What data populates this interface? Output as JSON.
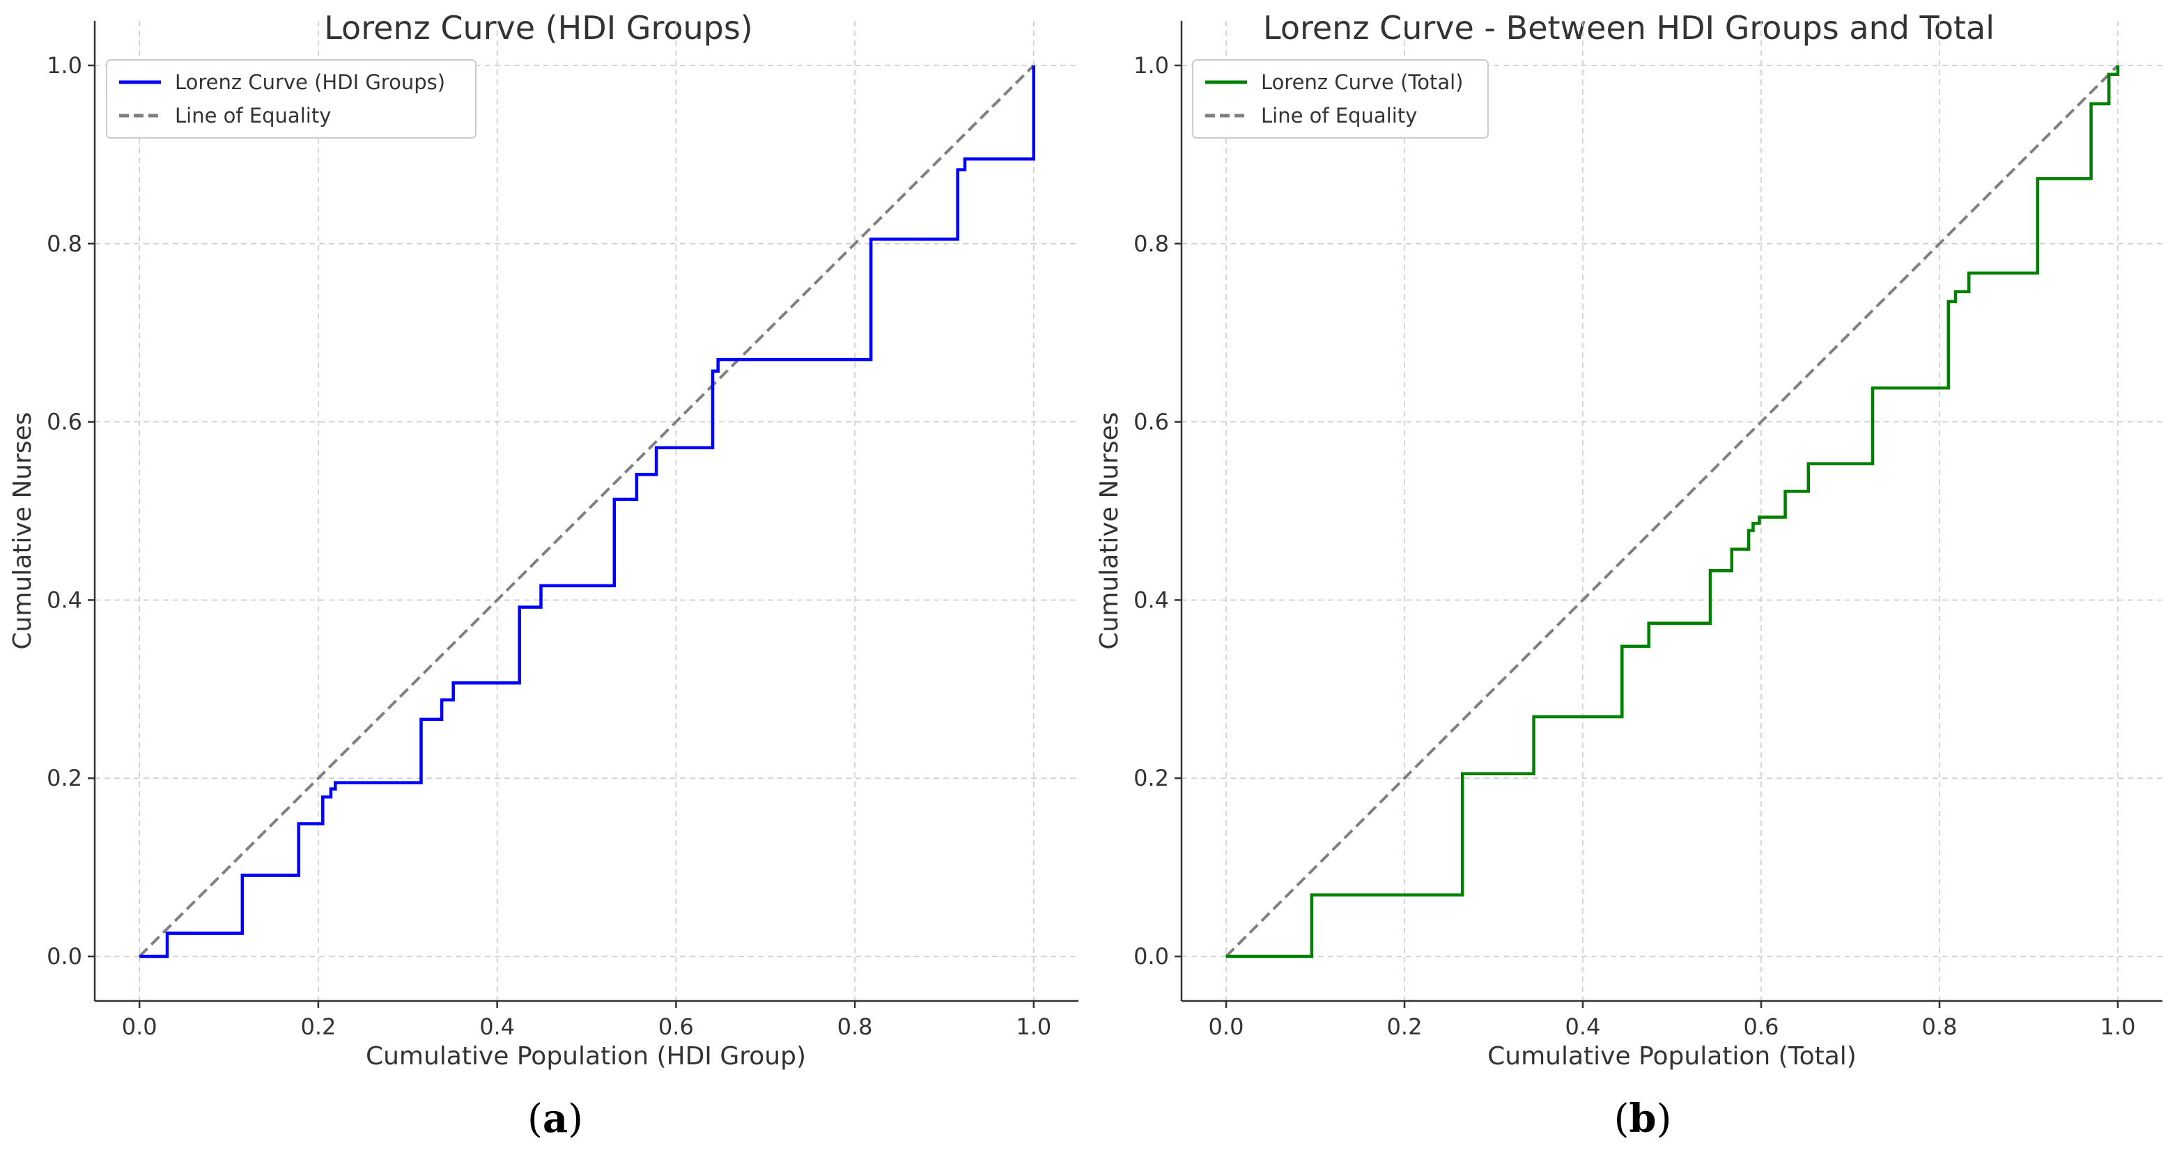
{
  "chart_data": [
    {
      "type": "line",
      "panel": "a",
      "title": "Lorenz Curve (HDI Groups)",
      "xlabel": "Cumulative Population (HDI Group)",
      "ylabel": "Cumulative Nurses",
      "xlim": [
        -0.05,
        1.05
      ],
      "ylim": [
        -0.05,
        1.05
      ],
      "xticks": [
        "0.0",
        "0.2",
        "0.4",
        "0.6",
        "0.8",
        "1.0"
      ],
      "yticks": [
        "0.0",
        "0.2",
        "0.4",
        "0.6",
        "0.8",
        "1.0"
      ],
      "grid": true,
      "legend_position": "top-left",
      "caption": "a",
      "series": [
        {
          "name": "Lorenz Curve (HDI Groups)",
          "color": "#0000ff",
          "style": "step",
          "points": [
            [
              0,
              0
            ],
            [
              0.031,
              0
            ],
            [
              0.031,
              0.026
            ],
            [
              0.115,
              0.026
            ],
            [
              0.115,
              0.091
            ],
            [
              0.178,
              0.091
            ],
            [
              0.178,
              0.149
            ],
            [
              0.205,
              0.149
            ],
            [
              0.205,
              0.179
            ],
            [
              0.214,
              0.179
            ],
            [
              0.214,
              0.188
            ],
            [
              0.219,
              0.188
            ],
            [
              0.219,
              0.195
            ],
            [
              0.315,
              0.195
            ],
            [
              0.315,
              0.266
            ],
            [
              0.338,
              0.266
            ],
            [
              0.338,
              0.288
            ],
            [
              0.351,
              0.288
            ],
            [
              0.351,
              0.307
            ],
            [
              0.425,
              0.307
            ],
            [
              0.425,
              0.392
            ],
            [
              0.449,
              0.392
            ],
            [
              0.449,
              0.416
            ],
            [
              0.531,
              0.416
            ],
            [
              0.531,
              0.513
            ],
            [
              0.556,
              0.513
            ],
            [
              0.556,
              0.541
            ],
            [
              0.578,
              0.541
            ],
            [
              0.578,
              0.571
            ],
            [
              0.641,
              0.571
            ],
            [
              0.641,
              0.657
            ],
            [
              0.647,
              0.657
            ],
            [
              0.647,
              0.67
            ],
            [
              0.818,
              0.67
            ],
            [
              0.818,
              0.805
            ],
            [
              0.915,
              0.805
            ],
            [
              0.915,
              0.883
            ],
            [
              0.923,
              0.883
            ],
            [
              0.923,
              0.895
            ],
            [
              1.0,
              0.895
            ],
            [
              1.0,
              1.0
            ]
          ]
        },
        {
          "name": "Line of Equality",
          "color": "#808080",
          "style": "dashed",
          "points": [
            [
              0,
              0
            ],
            [
              1,
              1
            ]
          ]
        }
      ]
    },
    {
      "type": "line",
      "panel": "b",
      "title": "Lorenz Curve - Between HDI Groups and Total",
      "xlabel": "Cumulative Population (Total)",
      "ylabel": "Cumulative Nurses",
      "xlim": [
        -0.05,
        1.05
      ],
      "ylim": [
        -0.05,
        1.05
      ],
      "xticks": [
        "0.0",
        "0.2",
        "0.4",
        "0.6",
        "0.8",
        "1.0"
      ],
      "yticks": [
        "0.0",
        "0.2",
        "0.4",
        "0.6",
        "0.8",
        "1.0"
      ],
      "grid": true,
      "legend_position": "top-left",
      "caption": "b",
      "series": [
        {
          "name": "Lorenz Curve (Total)",
          "color": "#008000",
          "style": "step",
          "points": [
            [
              0,
              0
            ],
            [
              0.096,
              0
            ],
            [
              0.096,
              0.069
            ],
            [
              0.265,
              0.069
            ],
            [
              0.265,
              0.205
            ],
            [
              0.345,
              0.205
            ],
            [
              0.345,
              0.269
            ],
            [
              0.444,
              0.269
            ],
            [
              0.444,
              0.348
            ],
            [
              0.474,
              0.348
            ],
            [
              0.474,
              0.374
            ],
            [
              0.543,
              0.374
            ],
            [
              0.543,
              0.433
            ],
            [
              0.567,
              0.433
            ],
            [
              0.567,
              0.457
            ],
            [
              0.586,
              0.457
            ],
            [
              0.586,
              0.478
            ],
            [
              0.591,
              0.478
            ],
            [
              0.591,
              0.486
            ],
            [
              0.598,
              0.486
            ],
            [
              0.598,
              0.493
            ],
            [
              0.627,
              0.493
            ],
            [
              0.627,
              0.522
            ],
            [
              0.653,
              0.522
            ],
            [
              0.653,
              0.553
            ],
            [
              0.725,
              0.553
            ],
            [
              0.725,
              0.638
            ],
            [
              0.81,
              0.638
            ],
            [
              0.81,
              0.735
            ],
            [
              0.818,
              0.735
            ],
            [
              0.818,
              0.746
            ],
            [
              0.833,
              0.746
            ],
            [
              0.833,
              0.767
            ],
            [
              0.91,
              0.767
            ],
            [
              0.91,
              0.873
            ],
            [
              0.97,
              0.873
            ],
            [
              0.97,
              0.957
            ],
            [
              0.99,
              0.957
            ],
            [
              0.99,
              0.99
            ],
            [
              1.0,
              0.99
            ],
            [
              1.0,
              1.0
            ]
          ]
        },
        {
          "name": "Line of Equality",
          "color": "#808080",
          "style": "dashed",
          "points": [
            [
              0,
              0
            ],
            [
              1,
              1
            ]
          ]
        }
      ]
    }
  ]
}
